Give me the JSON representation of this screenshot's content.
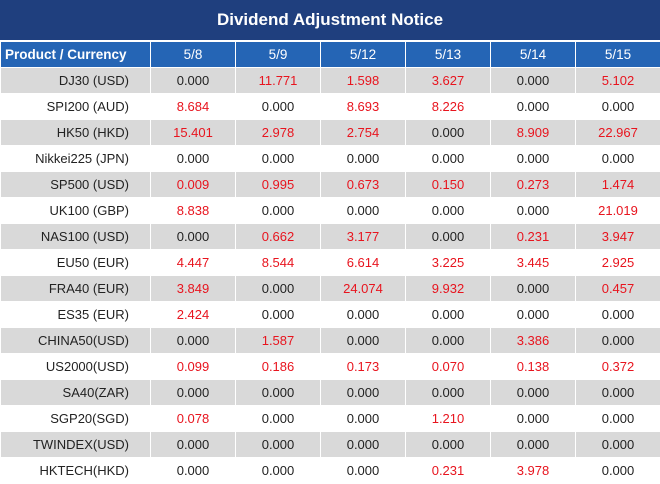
{
  "title": "Dividend Adjustment Notice",
  "header": {
    "product_label": "Product / Currency",
    "dates": [
      "5/8",
      "5/9",
      "5/12",
      "5/13",
      "5/14",
      "5/15"
    ]
  },
  "rows": [
    {
      "product": "DJ30 (USD)",
      "values": [
        "0.000",
        "11.771",
        "1.598",
        "3.627",
        "0.000",
        "5.102"
      ]
    },
    {
      "product": "SPI200 (AUD)",
      "values": [
        "8.684",
        "0.000",
        "8.693",
        "8.226",
        "0.000",
        "0.000"
      ]
    },
    {
      "product": "HK50 (HKD)",
      "values": [
        "15.401",
        "2.978",
        "2.754",
        "0.000",
        "8.909",
        "22.967"
      ]
    },
    {
      "product": "Nikkei225 (JPN)",
      "values": [
        "0.000",
        "0.000",
        "0.000",
        "0.000",
        "0.000",
        "0.000"
      ]
    },
    {
      "product": "SP500 (USD)",
      "values": [
        "0.009",
        "0.995",
        "0.673",
        "0.150",
        "0.273",
        "1.474"
      ]
    },
    {
      "product": "UK100 (GBP)",
      "values": [
        "8.838",
        "0.000",
        "0.000",
        "0.000",
        "0.000",
        "21.019"
      ]
    },
    {
      "product": "NAS100 (USD)",
      "values": [
        "0.000",
        "0.662",
        "3.177",
        "0.000",
        "0.231",
        "3.947"
      ]
    },
    {
      "product": "EU50 (EUR)",
      "values": [
        "4.447",
        "8.544",
        "6.614",
        "3.225",
        "3.445",
        "2.925"
      ]
    },
    {
      "product": "FRA40 (EUR)",
      "values": [
        "3.849",
        "0.000",
        "24.074",
        "9.932",
        "0.000",
        "0.457"
      ]
    },
    {
      "product": "ES35 (EUR)",
      "values": [
        "2.424",
        "0.000",
        "0.000",
        "0.000",
        "0.000",
        "0.000"
      ]
    },
    {
      "product": "CHINA50(USD)",
      "values": [
        "0.000",
        "1.587",
        "0.000",
        "0.000",
        "3.386",
        "0.000"
      ]
    },
    {
      "product": "US2000(USD)",
      "values": [
        "0.099",
        "0.186",
        "0.173",
        "0.070",
        "0.138",
        "0.372"
      ]
    },
    {
      "product": "SA40(ZAR)",
      "values": [
        "0.000",
        "0.000",
        "0.000",
        "0.000",
        "0.000",
        "0.000"
      ]
    },
    {
      "product": "SGP20(SGD)",
      "values": [
        "0.078",
        "0.000",
        "0.000",
        "1.210",
        "0.000",
        "0.000"
      ]
    },
    {
      "product": "TWINDEX(USD)",
      "values": [
        "0.000",
        "0.000",
        "0.000",
        "0.000",
        "0.000",
        "0.000"
      ]
    },
    {
      "product": "HKTECH(HKD)",
      "values": [
        "0.000",
        "0.000",
        "0.000",
        "0.231",
        "3.978",
        "0.000"
      ]
    }
  ],
  "colors": {
    "title_bg": "#1f3f7e",
    "header_bg": "#2565b5",
    "row_stripe": "#d9d9d9",
    "positive_value": "#e8141e",
    "zero_value": "#222222"
  }
}
